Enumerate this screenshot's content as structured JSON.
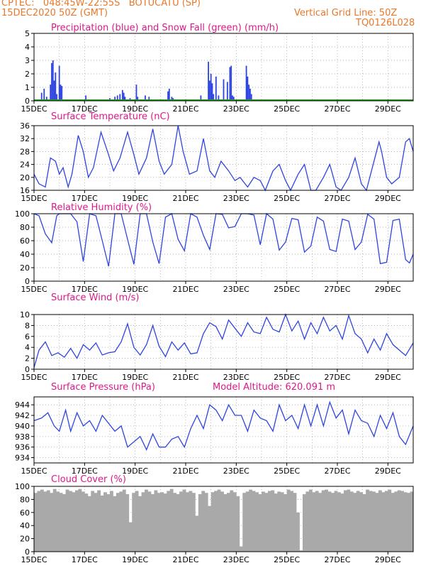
{
  "header": {
    "line1": "CPTEC:   048:45W-22:55S   BOTUCATU (SP)",
    "line2": "15DEC2020 50Z (GMT)",
    "right1": "Vertical Grid Line: 50Z",
    "right2": "TQ0126L028"
  },
  "colors": {
    "header": "#e8782a",
    "title": "#e0188a",
    "line": "#2e44e0",
    "snow": "#22a022",
    "cloud": "#a9a9a9",
    "grid": "#9a9a9a"
  },
  "x_ticks": [
    "15DEC",
    "17DEC",
    "19DEC",
    "21DEC",
    "23DEC",
    "25DEC",
    "27DEC",
    "29DEC"
  ],
  "chart_data": [
    {
      "type": "bar",
      "title": "Precipitation (blue) and Snow Fall (green) (mm/h)",
      "ylim": [
        0,
        5
      ],
      "yticks": [
        0,
        1,
        2,
        3,
        4,
        5
      ],
      "series": [
        {
          "name": "Precipitation",
          "x": [
            15.3,
            15.4,
            15.5,
            15.65,
            15.7,
            15.75,
            15.8,
            15.85,
            15.9,
            16.0,
            16.05,
            16.1,
            17.05,
            18.0,
            18.2,
            18.3,
            18.4,
            18.5,
            18.55,
            18.6,
            18.8,
            18.9,
            19.05,
            19.1,
            19.4,
            19.55,
            20.3,
            20.35,
            20.45,
            20.5,
            21.6,
            21.9,
            21.95,
            22.0,
            22.05,
            22.1,
            22.2,
            22.3,
            22.5,
            22.65,
            22.75,
            22.8,
            22.85,
            22.9,
            23.4,
            23.45,
            23.5,
            23.55,
            23.6
          ],
          "values": [
            0.6,
            0.9,
            0.3,
            1.2,
            2.8,
            3.0,
            1.5,
            2.1,
            0.5,
            2.6,
            1.2,
            1.1,
            0.4,
            0.2,
            0.3,
            0.4,
            0.5,
            0.8,
            0.6,
            0.3,
            0.2,
            0.1,
            1.2,
            0.3,
            0.4,
            0.3,
            0.7,
            0.9,
            0.3,
            0.2,
            0.4,
            2.9,
            1.5,
            2.0,
            1.3,
            0.5,
            1.8,
            0.4,
            1.6,
            1.4,
            2.5,
            2.6,
            0.4,
            0.3,
            2.6,
            1.8,
            1.2,
            0.9,
            0.5
          ]
        },
        {
          "name": "Snow Fall",
          "x": [
            15.0,
            30.0
          ],
          "values": [
            0,
            0
          ]
        }
      ]
    },
    {
      "type": "line",
      "title": "Surface Temperature (nC)",
      "ylim": [
        16,
        36
      ],
      "yticks": [
        16,
        20,
        24,
        28,
        32,
        36
      ],
      "series": [
        {
          "name": "Temperature",
          "x": [
            15.0,
            15.2,
            15.45,
            15.65,
            15.85,
            16.0,
            16.15,
            16.35,
            16.5,
            16.75,
            16.95,
            17.15,
            17.35,
            17.65,
            17.95,
            18.15,
            18.4,
            18.7,
            18.95,
            19.15,
            19.45,
            19.7,
            19.95,
            20.15,
            20.45,
            20.7,
            20.9,
            21.15,
            21.45,
            21.7,
            21.95,
            22.15,
            22.4,
            22.7,
            22.95,
            23.15,
            23.45,
            23.7,
            23.95,
            24.15,
            24.45,
            24.7,
            24.95,
            25.15,
            25.45,
            25.7,
            25.95,
            26.15,
            26.45,
            26.7,
            26.95,
            27.15,
            27.45,
            27.7,
            27.95,
            28.15,
            28.45,
            28.65,
            28.75,
            28.95,
            29.15,
            29.45,
            29.7,
            29.85,
            30.0
          ],
          "values": [
            21,
            18,
            17,
            26,
            25,
            21,
            23,
            17,
            21,
            33,
            28,
            20,
            23,
            34,
            27,
            22,
            26,
            34,
            27,
            21,
            26,
            35,
            25,
            21,
            24,
            36,
            28,
            21,
            22,
            32,
            22,
            20,
            25,
            22,
            19,
            20,
            17,
            20,
            19,
            16,
            22,
            24,
            19,
            16,
            21,
            24,
            16,
            16,
            20,
            24,
            17,
            16,
            20,
            26,
            18,
            16,
            25,
            31,
            28,
            20,
            18,
            20,
            31,
            32,
            28
          ]
        }
      ]
    },
    {
      "type": "line",
      "title": "Relative Humidity (%)",
      "ylim": [
        0,
        100
      ],
      "yticks": [
        0,
        20,
        40,
        60,
        80,
        100
      ],
      "series": [
        {
          "name": "Relative Humidity",
          "x": [
            15.0,
            15.2,
            15.45,
            15.7,
            15.9,
            16.0,
            16.2,
            16.45,
            16.7,
            16.95,
            17.2,
            17.45,
            17.7,
            17.95,
            18.2,
            18.45,
            18.7,
            18.95,
            19.2,
            19.45,
            19.7,
            19.95,
            20.2,
            20.45,
            20.7,
            20.95,
            21.2,
            21.45,
            21.7,
            21.95,
            22.2,
            22.45,
            22.7,
            22.95,
            23.2,
            23.45,
            23.7,
            23.95,
            24.2,
            24.45,
            24.7,
            24.95,
            25.2,
            25.45,
            25.7,
            25.95,
            26.2,
            26.45,
            26.7,
            26.95,
            27.2,
            27.45,
            27.7,
            27.95,
            28.2,
            28.45,
            28.7,
            28.95,
            29.2,
            29.45,
            29.7,
            29.85,
            30.0
          ],
          "values": [
            100,
            97,
            70,
            57,
            97,
            100,
            100,
            100,
            88,
            29,
            100,
            97,
            60,
            22,
            100,
            100,
            62,
            25,
            100,
            100,
            58,
            26,
            95,
            100,
            62,
            45,
            100,
            95,
            68,
            47,
            100,
            99,
            79,
            81,
            100,
            100,
            98,
            54,
            100,
            92,
            46,
            58,
            93,
            91,
            43,
            52,
            95,
            89,
            47,
            44,
            92,
            89,
            47,
            58,
            99,
            92,
            26,
            28,
            90,
            92,
            32,
            27,
            40
          ]
        }
      ]
    },
    {
      "type": "line",
      "title": "Surface Wind (m/s)",
      "ylim": [
        0,
        10
      ],
      "yticks": [
        0,
        2,
        4,
        6,
        8,
        10
      ],
      "series": [
        {
          "name": "Wind Speed",
          "x": [
            15.0,
            15.2,
            15.45,
            15.7,
            15.95,
            16.2,
            16.45,
            16.7,
            16.95,
            17.2,
            17.45,
            17.7,
            17.95,
            18.2,
            18.45,
            18.7,
            18.95,
            19.2,
            19.45,
            19.7,
            19.95,
            20.2,
            20.45,
            20.7,
            20.95,
            21.2,
            21.45,
            21.7,
            21.95,
            22.2,
            22.45,
            22.7,
            22.95,
            23.2,
            23.45,
            23.7,
            23.95,
            24.2,
            24.45,
            24.7,
            24.95,
            25.2,
            25.45,
            25.7,
            25.95,
            26.2,
            26.45,
            26.7,
            26.95,
            27.2,
            27.45,
            27.7,
            27.95,
            28.2,
            28.45,
            28.7,
            28.95,
            29.2,
            29.45,
            29.7,
            30.0
          ],
          "values": [
            0.3,
            3.5,
            5.0,
            2.5,
            3.0,
            2.2,
            3.8,
            2.0,
            4.5,
            3.5,
            4.8,
            2.6,
            3.0,
            3.2,
            5.0,
            8.3,
            4.0,
            2.6,
            4.5,
            8.0,
            4.2,
            2.3,
            5.0,
            3.5,
            4.8,
            2.8,
            3.0,
            6.5,
            8.5,
            7.8,
            5.5,
            9.0,
            7.5,
            6.0,
            8.5,
            6.8,
            6.5,
            9.5,
            7.3,
            6.8,
            10.0,
            7.0,
            8.8,
            5.5,
            8.5,
            6.5,
            9.5,
            7.0,
            8.0,
            5.5,
            9.8,
            6.5,
            5.5,
            3.0,
            5.5,
            3.5,
            6.5,
            4.5,
            3.5,
            2.5,
            4.8
          ]
        }
      ]
    },
    {
      "type": "line",
      "title": "Surface Pressure (hPa)",
      "annotation": "Model Altitude: 620.091 m",
      "ylim": [
        933,
        945.5
      ],
      "yticks": [
        934,
        936,
        938,
        940,
        942,
        944
      ],
      "series": [
        {
          "name": "Pressure",
          "x": [
            15.0,
            15.3,
            15.55,
            15.8,
            16.0,
            16.25,
            16.45,
            16.7,
            16.95,
            17.2,
            17.45,
            17.7,
            17.95,
            18.2,
            18.45,
            18.7,
            18.95,
            19.2,
            19.45,
            19.7,
            19.95,
            20.2,
            20.45,
            20.7,
            20.95,
            21.2,
            21.45,
            21.7,
            21.95,
            22.2,
            22.45,
            22.7,
            22.95,
            23.2,
            23.45,
            23.7,
            23.95,
            24.2,
            24.45,
            24.7,
            24.95,
            25.2,
            25.45,
            25.7,
            25.95,
            26.2,
            26.45,
            26.7,
            26.95,
            27.2,
            27.45,
            27.7,
            27.95,
            28.2,
            28.45,
            28.7,
            28.95,
            29.2,
            29.45,
            29.7,
            30.0
          ],
          "values": [
            941,
            941.5,
            942.5,
            940,
            939,
            943,
            939,
            942.5,
            940,
            941,
            939,
            942,
            940.5,
            939,
            940,
            936,
            937,
            938,
            935.5,
            938.5,
            936,
            936,
            937.5,
            938,
            936,
            939.5,
            942,
            939.5,
            944,
            943,
            941,
            944,
            942,
            942,
            939,
            943,
            941.5,
            941,
            939,
            944,
            941,
            942,
            939.5,
            944,
            940,
            944,
            940,
            944.5,
            941.5,
            943,
            938.5,
            943,
            941,
            940.5,
            938,
            942,
            939.5,
            942.5,
            938,
            936.5,
            940
          ]
        }
      ]
    },
    {
      "type": "bar",
      "title": "Cloud Cover (%)",
      "ylim": [
        0,
        100
      ],
      "yticks": [
        0,
        20,
        40,
        60,
        80,
        100
      ],
      "x_step": 0.125,
      "values": [
        90,
        93,
        95,
        92,
        94,
        90,
        96,
        92,
        90,
        88,
        95,
        93,
        91,
        94,
        96,
        92,
        89,
        85,
        93,
        90,
        94,
        86,
        91,
        88,
        93,
        85,
        90,
        92,
        95,
        88,
        45,
        90,
        93,
        85,
        91,
        95,
        92,
        88,
        94,
        90,
        91,
        89,
        93,
        96,
        90,
        88,
        92,
        95,
        91,
        93,
        90,
        55,
        88,
        93,
        90,
        70,
        91,
        93,
        95,
        92,
        88,
        90,
        94,
        91,
        85,
        8,
        90,
        92,
        95,
        93,
        91,
        88,
        92,
        90,
        93,
        94,
        89,
        92,
        91,
        88,
        95,
        93,
        90,
        60,
        2,
        88,
        92,
        95,
        91,
        93,
        90,
        94,
        95,
        92,
        90,
        93,
        91,
        89,
        94,
        95,
        92,
        90,
        93,
        91,
        88,
        95,
        93,
        92,
        90,
        94,
        91,
        93,
        95,
        90,
        92,
        94,
        93,
        91,
        90,
        92,
        94,
        95,
        93,
        90,
        92,
        91,
        92,
        93,
        91,
        94,
        92,
        90,
        93,
        89,
        92,
        94,
        90,
        91,
        92,
        95,
        93,
        88,
        92,
        93,
        92,
        90,
        90,
        88,
        94,
        91,
        93,
        89,
        92,
        87,
        90,
        93,
        91,
        94,
        89,
        92,
        90,
        88,
        93,
        91,
        89,
        94,
        92,
        90,
        88,
        93,
        91,
        89,
        92,
        90,
        93,
        87,
        91,
        88,
        92,
        90,
        89,
        60,
        40,
        90,
        93,
        91,
        89,
        92,
        88,
        90,
        87,
        93,
        91,
        89,
        92,
        90,
        88,
        10,
        0,
        0,
        0,
        0,
        60,
        85,
        40,
        0,
        0,
        0,
        30,
        70,
        60,
        50,
        80,
        55,
        90,
        80,
        70,
        85,
        88
      ]
    }
  ]
}
